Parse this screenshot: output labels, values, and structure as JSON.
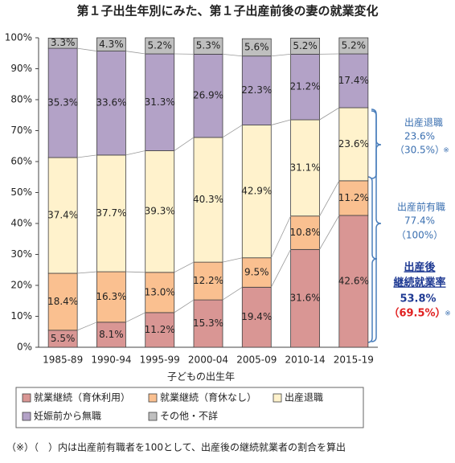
{
  "chart_data": {
    "type": "stacked_bar",
    "title": "第１子出生年別にみた、第１子出産前後の妻の就業変化",
    "x_label": "子どもの出生年",
    "categories": [
      "1985-89",
      "1990-94",
      "1995-99",
      "2000-04",
      "2005-09",
      "2010-14",
      "2015-19"
    ],
    "series": [
      {
        "name": "就業継続（育休利用）",
        "color": "#d99694",
        "values": [
          5.5,
          8.1,
          11.2,
          15.3,
          19.4,
          31.6,
          42.6
        ],
        "value_labels": [
          "5.5%",
          "8.1%",
          "11.2%",
          "15.3%",
          "19.4%",
          "31.6%",
          "42.6%"
        ]
      },
      {
        "name": "就業継続（育休なし）",
        "color": "#fac090",
        "values": [
          18.4,
          16.3,
          13.0,
          12.2,
          9.5,
          10.8,
          11.2
        ],
        "value_labels": [
          "18.4%",
          "16.3%",
          "13.0%",
          "12.2%",
          "9.5%",
          "10.8%",
          "11.2%"
        ]
      },
      {
        "name": "出産退職",
        "color": "#fff2cc",
        "values": [
          37.4,
          37.7,
          39.3,
          40.3,
          42.9,
          31.1,
          23.6
        ],
        "value_labels": [
          "37.4%",
          "37.7%",
          "39.3%",
          "40.3%",
          "42.9%",
          "31.1%",
          "23.6%"
        ]
      },
      {
        "name": "妊娠前から無職",
        "color": "#b3a2c7",
        "values": [
          35.3,
          33.6,
          31.3,
          26.9,
          22.3,
          21.2,
          17.4
        ],
        "value_labels": [
          "35.3%",
          "33.6%",
          "31.3%",
          "26.9%",
          "22.3%",
          "21.2%",
          "17.4%"
        ]
      },
      {
        "name": "その他・不詳",
        "color": "#bfbfbf",
        "values": [
          3.3,
          4.3,
          5.2,
          5.3,
          5.6,
          5.2,
          5.2
        ],
        "value_labels": [
          "3.3%",
          "4.3%",
          "5.2%",
          "5.3%",
          "5.6%",
          "5.2%",
          "5.2%"
        ]
      }
    ],
    "ylim": [
      0,
      100
    ],
    "yticks": [
      {
        "value": 0,
        "label": "0%"
      },
      {
        "value": 10,
        "label": "10%"
      },
      {
        "value": 20,
        "label": "20%"
      },
      {
        "value": 30,
        "label": "30%"
      },
      {
        "value": 40,
        "label": "40%"
      },
      {
        "value": 50,
        "label": "50%"
      },
      {
        "value": 60,
        "label": "60%"
      },
      {
        "value": 70,
        "label": "70%"
      },
      {
        "value": 80,
        "label": "80%"
      },
      {
        "value": 90,
        "label": "90%"
      },
      {
        "value": 100,
        "label": "100%"
      }
    ],
    "grid": false,
    "annotations": [
      [
        "出産退職",
        "23.6%",
        "（30.5%）",
        "※"
      ],
      [
        "出産前有職",
        "77.4%",
        "（100%）"
      ],
      [
        "出産後",
        "継続就業率",
        "53.8%",
        "（69.5%）",
        "※"
      ]
    ],
    "footnote": "（※）（　）内は出産前有職者を100として、出産後の継続就業者の割合を算出"
  }
}
